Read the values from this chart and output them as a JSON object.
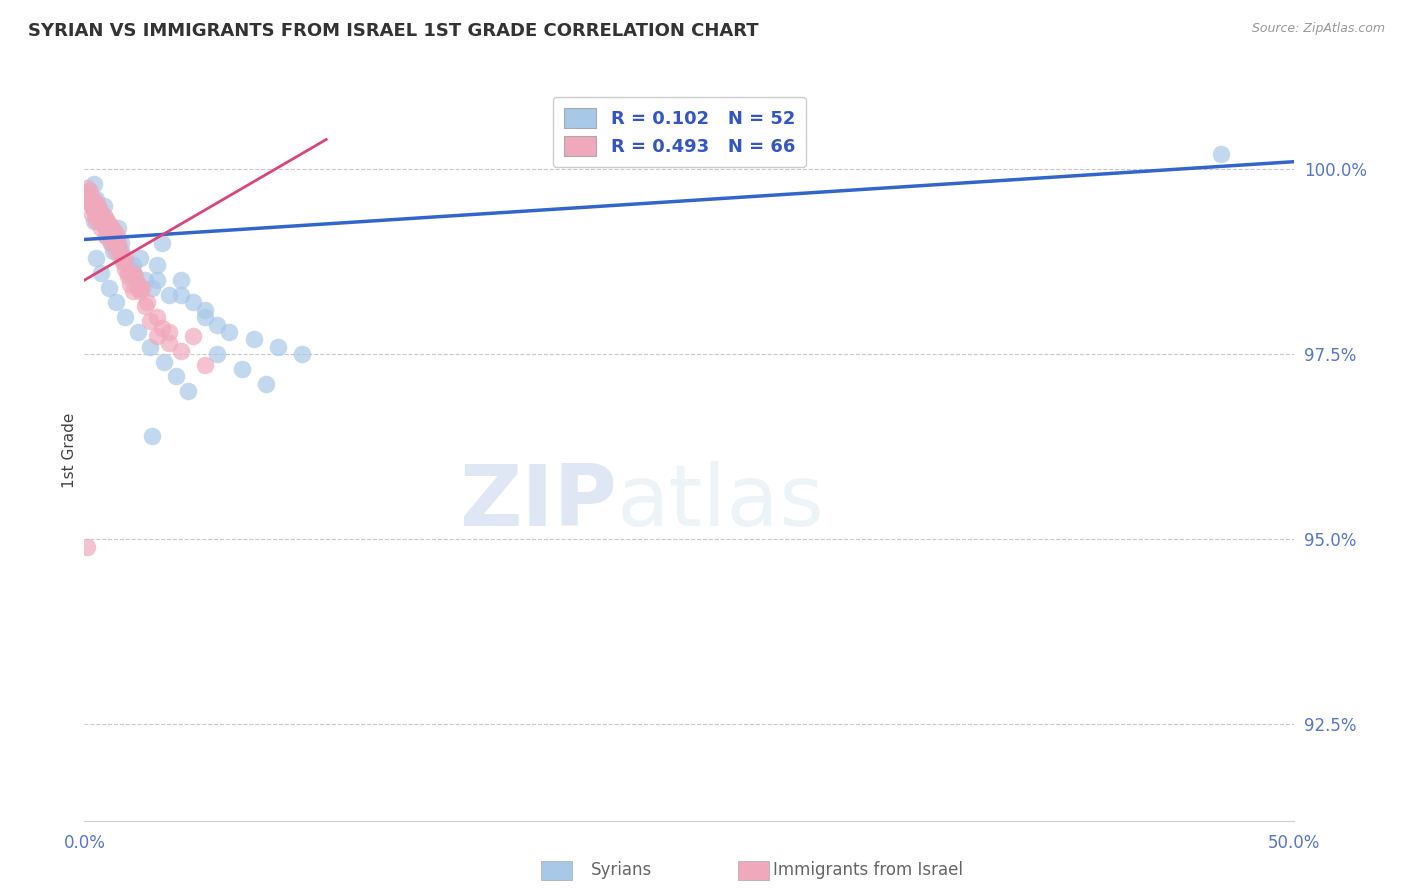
{
  "title": "SYRIAN VS IMMIGRANTS FROM ISRAEL 1ST GRADE CORRELATION CHART",
  "source": "Source: ZipAtlas.com",
  "ylabel": "1st Grade",
  "xlim": [
    0.0,
    50.0
  ],
  "ylim": [
    91.2,
    101.2
  ],
  "yticks": [
    92.5,
    95.0,
    97.5,
    100.0
  ],
  "xticks": [
    0.0,
    50.0
  ],
  "xticklabels": [
    "0.0%",
    "50.0%"
  ],
  "yticklabels": [
    "92.5%",
    "95.0%",
    "97.5%",
    "100.0%"
  ],
  "blue_color": "#A8C8E8",
  "pink_color": "#F0A8BC",
  "blue_line_color": "#3366CC",
  "pink_line_color": "#DD4477",
  "legend_R_blue": "R = 0.102",
  "legend_N_blue": "N = 52",
  "legend_R_pink": "R = 0.493",
  "legend_N_pink": "N = 66",
  "blue_scatter_x": [
    0.2,
    0.3,
    0.4,
    0.5,
    0.6,
    0.7,
    0.8,
    0.9,
    1.0,
    1.1,
    1.2,
    1.4,
    1.5,
    1.6,
    1.8,
    2.0,
    2.3,
    2.5,
    2.8,
    3.0,
    3.2,
    3.5,
    4.0,
    4.5,
    5.0,
    5.5,
    6.0,
    7.0,
    8.0,
    9.0,
    0.5,
    0.7,
    1.0,
    1.3,
    1.7,
    2.2,
    2.7,
    3.3,
    3.8,
    4.3,
    5.5,
    6.5,
    7.5,
    0.4,
    0.9,
    1.5,
    2.0,
    3.0,
    4.0,
    5.0,
    2.8,
    47.0
  ],
  "blue_scatter_y": [
    99.7,
    99.5,
    99.8,
    99.6,
    99.4,
    99.3,
    99.5,
    99.2,
    99.1,
    99.0,
    98.9,
    99.2,
    99.0,
    98.8,
    98.7,
    98.6,
    98.8,
    98.5,
    98.4,
    98.7,
    99.0,
    98.3,
    98.5,
    98.2,
    98.0,
    97.9,
    97.8,
    97.7,
    97.6,
    97.5,
    98.8,
    98.6,
    98.4,
    98.2,
    98.0,
    97.8,
    97.6,
    97.4,
    97.2,
    97.0,
    97.5,
    97.3,
    97.1,
    99.3,
    99.1,
    98.9,
    98.7,
    98.5,
    98.3,
    98.1,
    96.4,
    100.2
  ],
  "pink_scatter_x": [
    0.1,
    0.15,
    0.2,
    0.25,
    0.3,
    0.35,
    0.4,
    0.45,
    0.5,
    0.55,
    0.6,
    0.65,
    0.7,
    0.75,
    0.8,
    0.85,
    0.9,
    0.95,
    1.0,
    1.05,
    1.1,
    1.15,
    1.2,
    1.25,
    1.3,
    1.35,
    1.4,
    1.5,
    1.6,
    1.7,
    1.8,
    1.9,
    2.0,
    2.1,
    2.2,
    2.3,
    2.5,
    2.7,
    3.0,
    3.2,
    3.5,
    4.0,
    4.5,
    5.0,
    0.3,
    0.5,
    0.7,
    0.9,
    1.1,
    1.3,
    1.5,
    1.8,
    2.2,
    2.6,
    3.0,
    3.5,
    0.2,
    0.4,
    0.6,
    0.8,
    1.0,
    1.2,
    1.4,
    1.7,
    2.0,
    2.4
  ],
  "pink_scatter_y": [
    99.75,
    99.65,
    99.55,
    99.7,
    99.5,
    99.6,
    99.45,
    99.55,
    99.4,
    99.5,
    99.35,
    99.45,
    99.3,
    99.4,
    99.25,
    99.35,
    99.2,
    99.3,
    99.15,
    99.25,
    99.1,
    99.2,
    99.05,
    99.15,
    99.0,
    99.1,
    98.95,
    98.85,
    98.75,
    98.65,
    98.55,
    98.45,
    98.35,
    98.55,
    98.45,
    98.35,
    98.15,
    97.95,
    97.75,
    97.85,
    97.65,
    97.55,
    97.75,
    97.35,
    99.4,
    99.3,
    99.2,
    99.1,
    99.0,
    98.9,
    98.8,
    98.6,
    98.4,
    98.2,
    98.0,
    97.8,
    99.6,
    99.5,
    99.4,
    99.3,
    99.2,
    99.1,
    99.0,
    98.8,
    98.6,
    98.4
  ],
  "pink_outlier_x": [
    0.1
  ],
  "pink_outlier_y": [
    94.9
  ],
  "blue_trendline_x": [
    0.0,
    50.0
  ],
  "blue_trendline_y": [
    99.05,
    100.1
  ],
  "pink_trendline_x": [
    0.0,
    10.0
  ],
  "pink_trendline_y": [
    98.5,
    100.4
  ],
  "watermark_zip": "ZIP",
  "watermark_atlas": "atlas",
  "background_color": "#FFFFFF",
  "grid_color": "#BBBBBB"
}
